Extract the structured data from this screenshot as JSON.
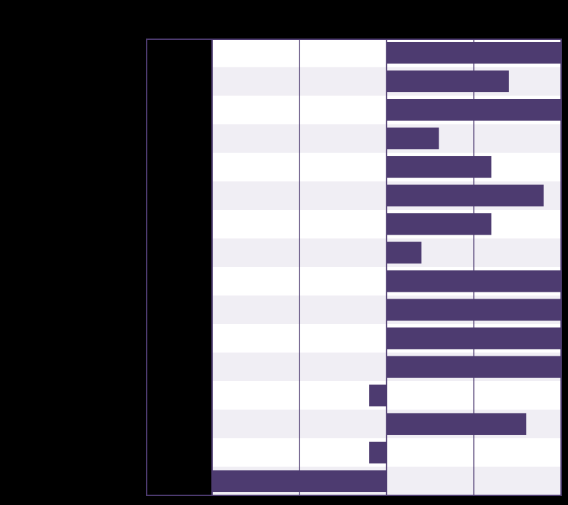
{
  "colors": {
    "background": "#000000",
    "bar": "#4d3b70",
    "frame": "#4d3b70",
    "row_light": "#ffffff",
    "row_shaded": "#f0eef4",
    "label_panel": "#000000"
  },
  "chart_data": {
    "type": "bar",
    "orientation": "horizontal",
    "title": "",
    "xlabel": "",
    "ylabel": "",
    "categories": [
      "",
      "",
      "",
      "",
      "",
      "",
      "",
      "",
      "",
      "",
      "",
      "",
      "",
      "",
      "",
      ""
    ],
    "series": [
      {
        "values": [
          1.0,
          0.7,
          1.0,
          0.3,
          0.6,
          0.9,
          0.6,
          0.2,
          1.0,
          1.0,
          1.0,
          1.0,
          -0.1,
          0.8,
          -0.1,
          -1.0
        ]
      }
    ],
    "xlim": [
      -1.0,
      1.0
    ],
    "xticks": [
      -1.0,
      -0.5,
      0,
      0.5,
      1.0
    ],
    "grid": "vertical",
    "legend": "none"
  }
}
